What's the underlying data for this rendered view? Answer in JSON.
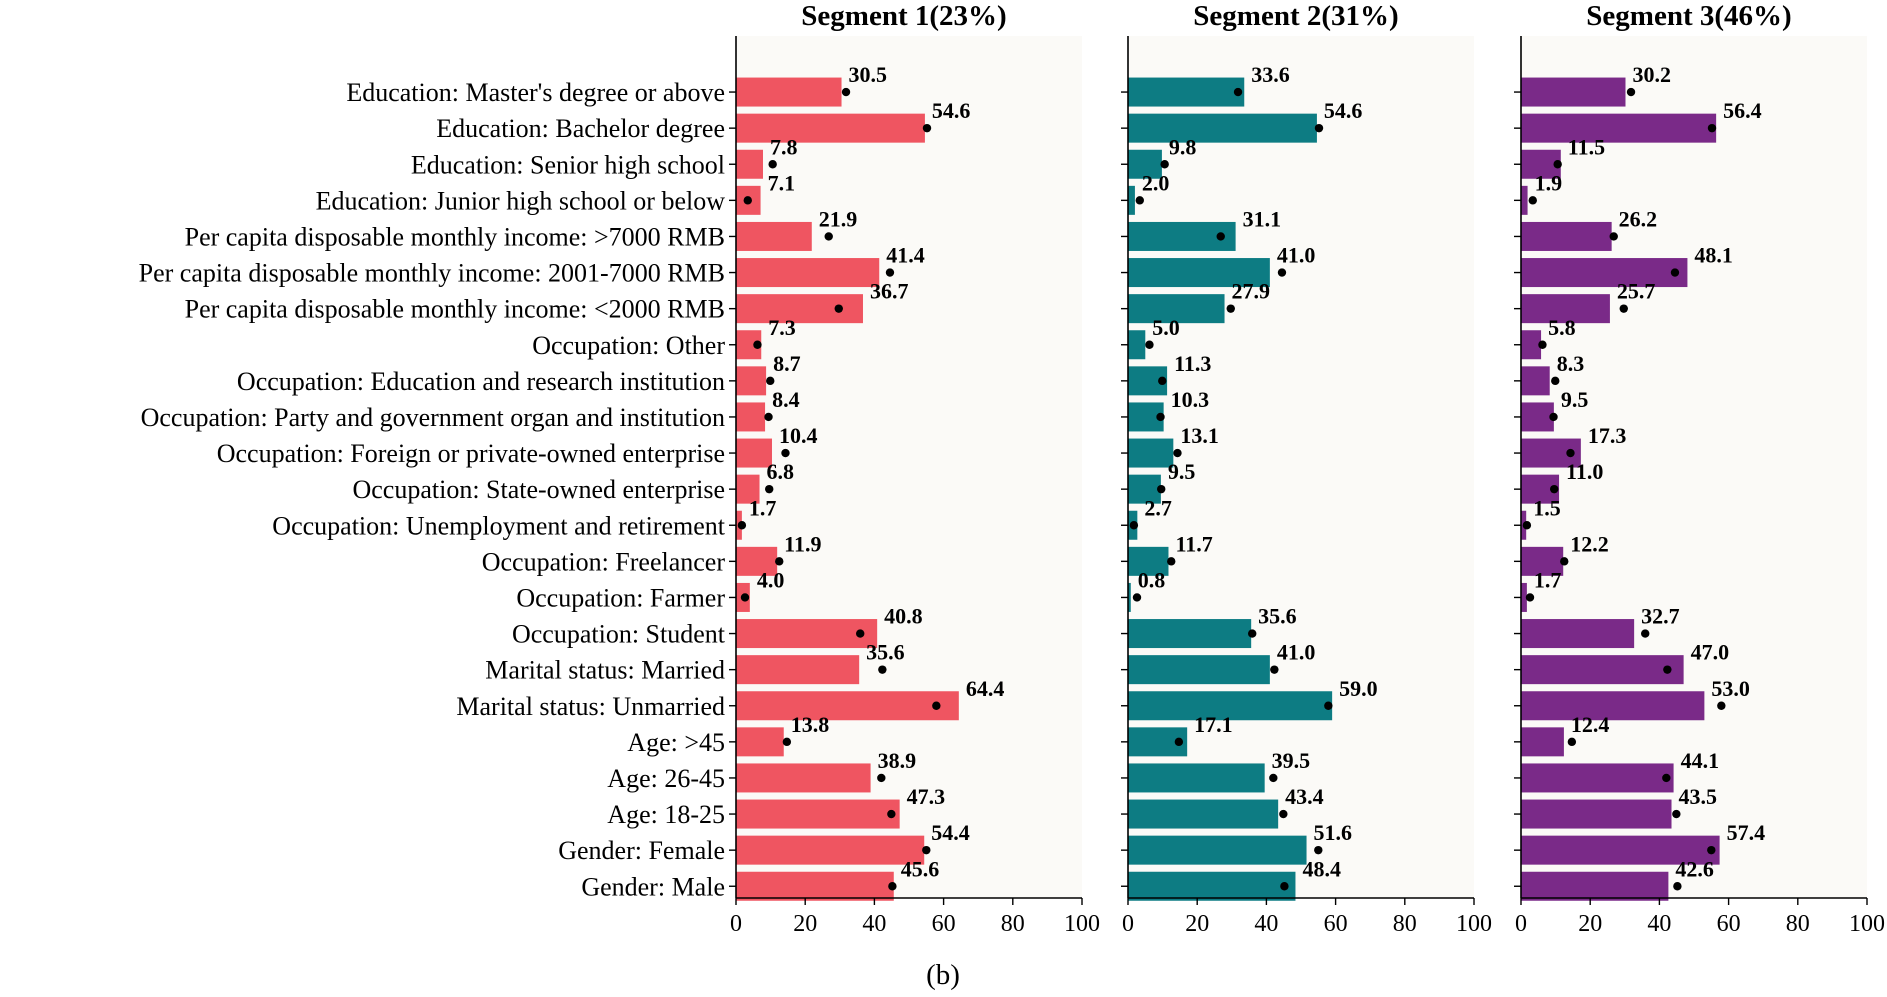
{
  "caption": "(b)",
  "chart_data": {
    "type": "bar",
    "orientation": "horizontal",
    "categories": [
      "Education: Master's degree or above",
      "Education: Bachelor degree",
      "Education: Senior high school",
      "Education: Junior high school or below",
      "Per capita disposable monthly income: >7000 RMB",
      "Per capita disposable monthly income: 2001-7000 RMB",
      "Per capita disposable monthly income: <2000 RMB",
      "Occupation: Other",
      "Occupation: Education and research institution",
      "Occupation: Party and government organ and institution",
      "Occupation: Foreign or private-owned enterprise",
      "Occupation: State-owned enterprise",
      "Occupation: Unemployment and retirement",
      "Occupation: Freelancer",
      "Occupation: Farmer",
      "Occupation: Student",
      "Marital status: Married",
      "Marital status: Unmarried",
      "Age: >45",
      "Age: 26-45",
      "Age: 18-25",
      "Gender: Female",
      "Gender: Male"
    ],
    "xlim": [
      0,
      100
    ],
    "xticks": [
      0,
      20,
      40,
      60,
      80,
      100
    ],
    "panels": [
      {
        "title": "Segment 1(23%)",
        "color": "#ef5561",
        "values": [
          30.5,
          54.6,
          7.8,
          7.1,
          21.9,
          41.4,
          36.7,
          7.3,
          8.7,
          8.4,
          10.4,
          6.8,
          1.7,
          11.9,
          4.0,
          40.8,
          35.6,
          64.4,
          13.8,
          38.9,
          47.3,
          54.4,
          45.6
        ],
        "points": [
          31.8,
          55.2,
          10.6,
          3.4,
          26.8,
          44.5,
          29.7,
          6.2,
          9.9,
          9.4,
          14.3,
          9.6,
          1.7,
          12.5,
          2.6,
          35.9,
          42.3,
          57.9,
          14.7,
          42.0,
          44.9,
          55.0,
          45.2
        ]
      },
      {
        "title": "Segment 2(31%)",
        "color": "#0d7c83",
        "values": [
          33.6,
          54.6,
          9.8,
          2.0,
          31.1,
          41.0,
          27.9,
          5.0,
          11.3,
          10.3,
          13.1,
          9.5,
          2.7,
          11.7,
          0.8,
          35.6,
          41.0,
          59.0,
          17.1,
          39.5,
          43.4,
          51.6,
          48.4
        ],
        "points": [
          31.8,
          55.2,
          10.6,
          3.4,
          26.8,
          44.5,
          29.7,
          6.2,
          9.9,
          9.4,
          14.3,
          9.6,
          1.7,
          12.5,
          2.6,
          35.9,
          42.3,
          57.9,
          14.7,
          42.0,
          44.9,
          55.0,
          45.2
        ]
      },
      {
        "title": "Segment 3(46%)",
        "color": "#7a2a88",
        "values": [
          30.2,
          56.4,
          11.5,
          1.9,
          26.2,
          48.1,
          25.7,
          5.8,
          8.3,
          9.5,
          17.3,
          11.0,
          1.5,
          12.2,
          1.7,
          32.7,
          47.0,
          53.0,
          12.4,
          44.1,
          43.5,
          57.4,
          42.6
        ],
        "points": [
          31.8,
          55.2,
          10.6,
          3.4,
          26.8,
          44.5,
          29.7,
          6.2,
          9.9,
          9.4,
          14.3,
          9.6,
          1.7,
          12.5,
          2.6,
          35.9,
          42.3,
          57.9,
          14.7,
          42.0,
          44.9,
          55.0,
          45.2
        ]
      }
    ]
  }
}
